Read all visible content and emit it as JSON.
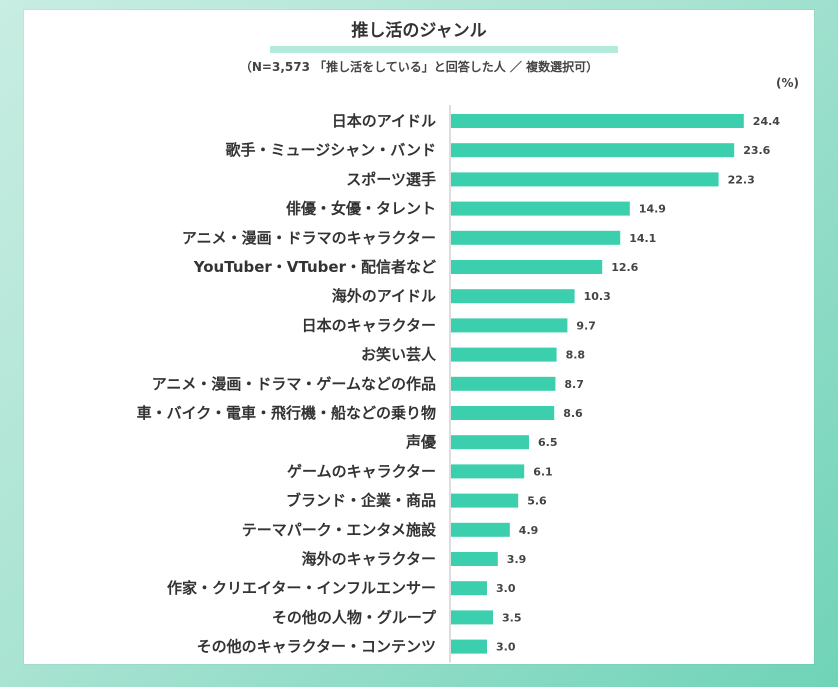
{
  "chart_data": {
    "type": "bar",
    "orientation": "horizontal",
    "title": "推し活のジャンル",
    "subtitle": "（N=3,573 「推し活をしている」と回答した人 ／ 複数選択可）",
    "unit": "(%)",
    "categories": [
      "日本のアイドル",
      "歌手・ミュージシャン・バンド",
      "スポーツ選手",
      "俳優・女優・タレント",
      "アニメ・漫画・ドラマのキャラクター",
      "YouTuber・VTuber・配信者など",
      "海外のアイドル",
      "日本のキャラクター",
      "お笑い芸人",
      "アニメ・漫画・ドラマ・ゲームなどの作品",
      "車・バイク・電車・飛行機・船などの乗り物",
      "声優",
      "ゲームのキャラクター",
      "ブランド・企業・商品",
      "テーマパーク・エンタメ施設",
      "海外のキャラクター",
      "作家・クリエイター・インフルエンサー",
      "その他の人物・グループ",
      "その他のキャラクター・コンテンツ"
    ],
    "values": [
      24.4,
      23.6,
      22.3,
      14.9,
      14.1,
      12.6,
      10.3,
      9.7,
      8.8,
      8.7,
      8.6,
      6.5,
      6.1,
      5.6,
      4.9,
      3.9,
      3.0,
      3.5,
      3.0
    ],
    "value_labels": [
      "24.4",
      "23.6",
      "22.3",
      "14.9",
      "14.1",
      "12.6",
      "10.3",
      "9.7",
      "8.8",
      "8.7",
      "8.6",
      "6.5",
      "6.1",
      "5.6",
      "4.9",
      "3.9",
      "3.0",
      "3.5",
      "3.0"
    ],
    "xlim": [
      0,
      27
    ],
    "bar_color": "#3ccfad",
    "grid": false,
    "legend": "none"
  }
}
